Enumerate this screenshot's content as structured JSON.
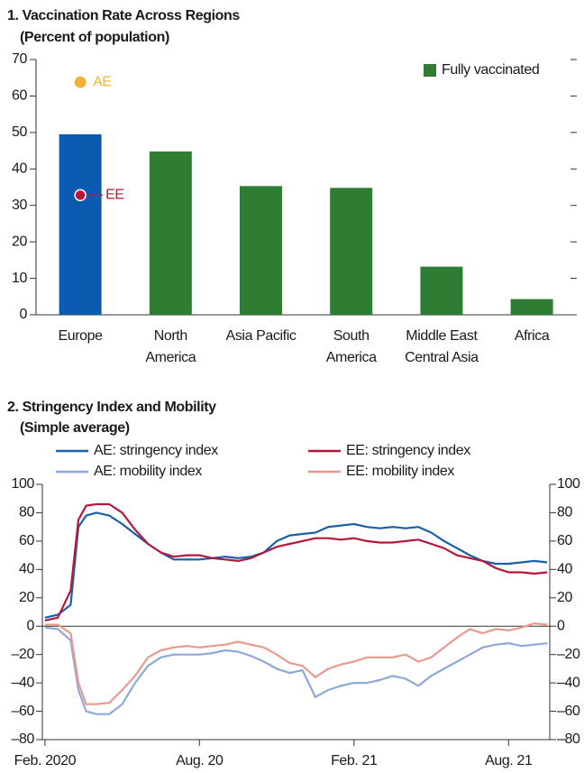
{
  "chart_data": [
    {
      "type": "bar",
      "title": "1. Vaccination Rate Across Regions",
      "subtitle": "(Percent of population)",
      "categories": [
        "Europe",
        "North\nAmerica",
        "Asia Pacific",
        "South\nAmerica",
        "Middle East\nCentral Asia",
        "Africa"
      ],
      "series": [
        {
          "name": "Fully vaccinated",
          "color": "#2e7d32",
          "colors": [
            "#0a5bb0",
            "#2e7d32",
            "#2e7d32",
            "#2e7d32",
            "#2e7d32",
            "#2e7d32"
          ],
          "values": [
            49.5,
            44.8,
            35.3,
            34.8,
            13.2,
            4.3
          ]
        }
      ],
      "points": [
        {
          "name": "AE",
          "color": "#f5b335",
          "values": [
            63.8,
            null,
            null,
            null,
            null,
            null
          ]
        },
        {
          "name": "EE",
          "color": "#b5173a",
          "values": [
            32.8,
            null,
            null,
            null,
            null,
            null
          ]
        }
      ],
      "ylim": [
        0,
        70
      ],
      "yticks": [
        0,
        10,
        20,
        30,
        40,
        50,
        60,
        70
      ],
      "legend": "top-right"
    },
    {
      "type": "line",
      "title": "2. Stringency Index and Mobility",
      "subtitle": "(Simple average)",
      "x": [
        0,
        0.5,
        1,
        1.3,
        1.6,
        2,
        2.5,
        3,
        3.5,
        4,
        4.5,
        5,
        5.5,
        6,
        6.5,
        7,
        7.5,
        8,
        8.5,
        9,
        9.5,
        10,
        10.5,
        11,
        11.5,
        12,
        12.5,
        13,
        13.5,
        14,
        14.5,
        15,
        15.5,
        16,
        16.5,
        17,
        17.5,
        18,
        18.5,
        19,
        19.5
      ],
      "xlim": [
        -0.1,
        19.6
      ],
      "xticks": [
        {
          "value": 0,
          "label": "Feb. 2020"
        },
        {
          "value": 6,
          "label": "Aug. 20"
        },
        {
          "value": 12,
          "label": "Feb. 21"
        },
        {
          "value": 18,
          "label": "Aug.  21"
        }
      ],
      "series": [
        {
          "name": "AE: stringency index",
          "color": "#1a5fa8",
          "values": [
            6,
            8,
            15,
            70,
            78,
            80,
            78,
            72,
            65,
            58,
            52,
            47,
            47,
            47,
            48,
            49,
            48,
            49,
            52,
            60,
            64,
            65,
            66,
            70,
            71,
            72,
            70,
            69,
            70,
            69,
            70,
            66,
            60,
            55,
            50,
            46,
            44,
            44,
            45,
            46,
            45
          ]
        },
        {
          "name": "EE: stringency index",
          "color": "#b5173a",
          "values": [
            4,
            6,
            25,
            75,
            85,
            86,
            86,
            80,
            68,
            58,
            52,
            49,
            50,
            50,
            48,
            47,
            46,
            48,
            52,
            56,
            58,
            60,
            62,
            62,
            61,
            62,
            60,
            59,
            59,
            60,
            61,
            58,
            55,
            50,
            48,
            46,
            41,
            38,
            38,
            37,
            38
          ]
        },
        {
          "name": "AE: mobility index",
          "color": "#8ea8d8",
          "values": [
            -1,
            -2,
            -10,
            -45,
            -60,
            -62,
            -62,
            -55,
            -40,
            -28,
            -22,
            -20,
            -20,
            -20,
            -19,
            -17,
            -18,
            -21,
            -25,
            -30,
            -33,
            -31,
            -50,
            -45,
            -42,
            -40,
            -40,
            -38,
            -35,
            -37,
            -42,
            -35,
            -30,
            -25,
            -20,
            -15,
            -13,
            -12,
            -14,
            -13,
            -12
          ]
        },
        {
          "name": "EE: mobility index",
          "color": "#e89a8e",
          "values": [
            1,
            1,
            -5,
            -40,
            -55,
            -55,
            -54,
            -45,
            -35,
            -22,
            -17,
            -15,
            -14,
            -15,
            -14,
            -13,
            -11,
            -13,
            -15,
            -20,
            -26,
            -28,
            -36,
            -30,
            -27,
            -25,
            -22,
            -22,
            -22,
            -20,
            -25,
            -22,
            -15,
            -8,
            -2,
            -5,
            -2,
            -3,
            -1,
            2,
            1
          ]
        }
      ],
      "ylim": [
        -80,
        100
      ],
      "yticks": [
        {
          "value": -80,
          "label": "–80"
        },
        {
          "value": -60,
          "label": "–60"
        },
        {
          "value": -40,
          "label": "–40"
        },
        {
          "value": -20,
          "label": "–20"
        },
        0,
        20,
        40,
        60,
        80,
        100
      ],
      "y2lim": [
        -80,
        100
      ],
      "y2ticks": [
        {
          "value": -80,
          "label": "–80"
        },
        {
          "value": -60,
          "label": "–60"
        },
        {
          "value": -40,
          "label": "–40"
        },
        {
          "value": -20,
          "label": "–20"
        },
        0,
        20,
        40,
        60,
        80,
        100
      ],
      "legend": "top"
    }
  ]
}
